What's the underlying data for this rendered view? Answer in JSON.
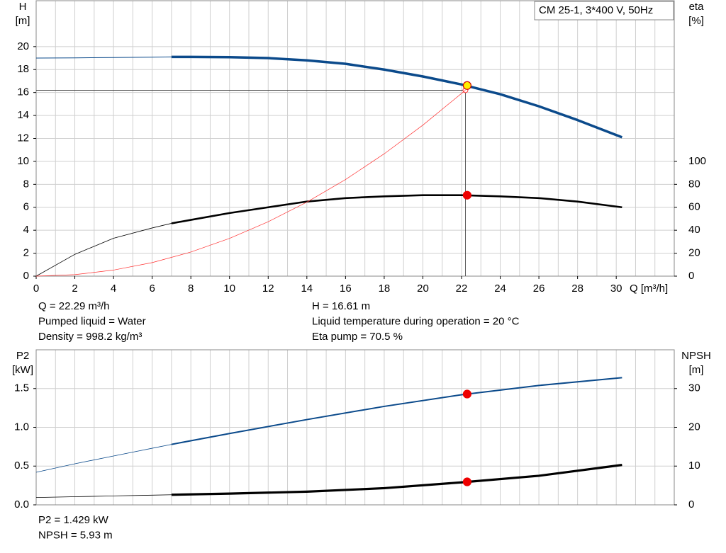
{
  "chart_data": [
    {
      "type": "line",
      "title": "CM 25-1, 3*400 V, 50Hz",
      "ylabel": [
        "H",
        "[m]"
      ],
      "y2label": [
        "eta",
        "[%]"
      ],
      "xlabel": "Q [m³/h]",
      "xlim": [
        0,
        33
      ],
      "xticks": [
        0,
        2,
        4,
        6,
        8,
        10,
        12,
        14,
        16,
        18,
        20,
        22,
        24,
        26,
        28,
        30
      ],
      "xgrid": [
        0,
        1,
        2,
        3,
        4,
        5,
        6,
        7,
        8,
        9,
        10,
        11,
        12,
        13,
        14,
        15,
        16,
        17,
        18,
        19,
        20,
        21,
        22,
        23,
        24,
        25,
        26,
        27,
        28,
        29,
        30,
        31,
        32,
        33
      ],
      "ylim": [
        0,
        24
      ],
      "yticks": [
        0,
        2,
        4,
        6,
        8,
        10,
        12,
        14,
        16,
        18,
        20
      ],
      "y2lim": [
        0,
        240
      ],
      "y2ticks": [
        0,
        20,
        40,
        60,
        80,
        100
      ],
      "grid": true,
      "series": [
        {
          "color": "#0b4a8b",
          "thick_from": 7,
          "x": [
            0,
            2,
            4,
            6,
            7,
            8,
            10,
            12,
            14,
            16,
            18,
            20,
            22,
            24,
            26,
            28,
            30.3
          ],
          "values": [
            19.0,
            19.02,
            19.05,
            19.08,
            19.1,
            19.1,
            19.08,
            19.0,
            18.8,
            18.5,
            18.0,
            17.4,
            16.7,
            15.85,
            14.8,
            13.6,
            12.1
          ]
        },
        {
          "color": "#000000",
          "thick_from": 7,
          "axis": "y2",
          "x": [
            0,
            2,
            4,
            6,
            7,
            8,
            10,
            12,
            14,
            16,
            18,
            20,
            22,
            24,
            26,
            28,
            30.3
          ],
          "values": [
            0,
            19,
            33,
            42,
            46,
            49,
            55,
            60,
            65,
            68,
            69.5,
            70.5,
            70.5,
            69.5,
            68,
            65,
            60
          ]
        },
        {
          "color": "#ff3030",
          "x": [
            0,
            2,
            4,
            6,
            8,
            10,
            12,
            14,
            16,
            18,
            20,
            22.2
          ],
          "values": [
            0,
            0.13,
            0.53,
            1.18,
            2.1,
            3.29,
            4.74,
            6.45,
            8.42,
            10.66,
            13.16,
            16.2
          ]
        }
      ],
      "guide": {
        "x": 22.2,
        "y": 16.2
      },
      "points": [
        {
          "x": 22.29,
          "y": 16.61,
          "color": "#ffee00"
        },
        {
          "x": 22.29,
          "y": 70.5,
          "color": "#ee0000",
          "axis": "y2"
        }
      ],
      "info": [
        "Q = 22.29 m³/h",
        "Pumped liquid = Water",
        "Density = 998.2 kg/m³",
        "H = 16.61 m",
        "Liquid temperature during operation = 20 °C",
        "Eta pump = 70.5 %"
      ]
    },
    {
      "type": "line",
      "ylabel": [
        "P2",
        "[kW]"
      ],
      "y2label": [
        "NPSH",
        "[m]"
      ],
      "xlim": [
        0,
        33
      ],
      "xgrid": [
        0,
        1,
        2,
        3,
        4,
        5,
        6,
        7,
        8,
        9,
        10,
        11,
        12,
        13,
        14,
        15,
        16,
        17,
        18,
        19,
        20,
        21,
        22,
        23,
        24,
        25,
        26,
        27,
        28,
        29,
        30,
        31,
        32,
        33
      ],
      "ylim": [
        0,
        2
      ],
      "yticks": [
        {
          "value": 0,
          "label": "0.0"
        },
        {
          "value": 0.5,
          "label": "0.5"
        },
        {
          "value": 1,
          "label": "1.0"
        },
        {
          "value": 1.5,
          "label": "1.5"
        }
      ],
      "y2lim": [
        0,
        40
      ],
      "y2ticks": [
        0,
        10,
        20,
        30
      ],
      "grid": true,
      "series": [
        {
          "color": "#0b4a8b",
          "thick_from": 7,
          "x": [
            0,
            2,
            4,
            6,
            7,
            10,
            14,
            18,
            22,
            26,
            30.3
          ],
          "values": [
            0.42,
            0.53,
            0.63,
            0.73,
            0.78,
            0.92,
            1.1,
            1.27,
            1.42,
            1.54,
            1.64
          ]
        },
        {
          "color": "#000000",
          "thick_from": 7,
          "axis": "y2",
          "x": [
            0,
            2,
            4,
            6,
            7,
            10,
            14,
            18,
            22,
            26,
            30.3
          ],
          "values": [
            1.9,
            2.1,
            2.3,
            2.5,
            2.6,
            2.9,
            3.4,
            4.3,
            5.8,
            7.5,
            10.3
          ]
        }
      ],
      "points": [
        {
          "x": 22.29,
          "y": 1.429,
          "color": "#ee0000"
        },
        {
          "x": 22.29,
          "y": 5.93,
          "color": "#ee0000",
          "axis": "y2"
        }
      ],
      "info": [
        "P2 = 1.429 kW",
        "NPSH = 5.93 m"
      ]
    }
  ]
}
